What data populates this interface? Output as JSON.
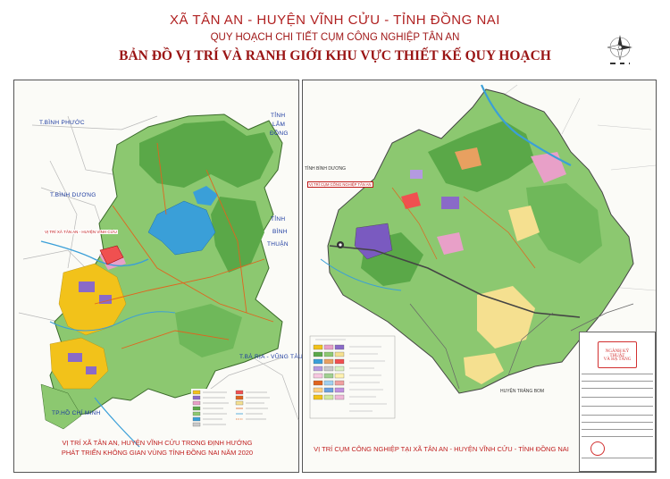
{
  "title": {
    "line1": "XÃ TÂN AN - HUYỆN VĨNH CỬU - TỈNH ĐỒNG NAI",
    "line2": "QUY HOẠCH CHI TIẾT CỤM CÔNG NGHIỆP TÂN AN",
    "line3": "BẢN ĐỒ VỊ TRÍ VÀ RANH GIỚI KHU VỰC THIẾT KẾ QUY HOẠCH"
  },
  "compass": {
    "icon": "north-arrow-compass-icon"
  },
  "left_map": {
    "labels": {
      "binh_phuoc": "T.BÌNH PHƯỚC",
      "binh_duong": "T.BÌNH DƯƠNG",
      "lam_dong_1": "TỈNH",
      "lam_dong_2": "LÂM",
      "lam_dong_3": "ĐỒNG",
      "binh_thuan_1": "TỈNH",
      "binh_thuan_2": "BÌNH",
      "binh_thuan_3": "THUẬN",
      "ba_ria": "T.BÀ RỊA - VŨNG TÀU",
      "hcm": "TP.HỒ CHÍ MINH",
      "site": "VỊ TRÍ XÃ TÂN AN - HUYỆN VĨNH CỬU"
    },
    "caption_line1": "VỊ TRÍ XÃ TÂN AN, HUYỆN VĨNH CỬU TRONG ĐỊNH HƯỚNG",
    "caption_line2": "PHÁT TRIỂN KHÔNG GIAN VÙNG TỈNH ĐỒNG NAI NĂM 2020"
  },
  "right_map": {
    "labels": {
      "binh_duong": "TỈNH BÌNH DƯƠNG",
      "site": "VỊ TRÍ CỤM CÔNG NGHIỆP TÂN AN",
      "trang_bom": "HUYỆN TRẢNG BOM"
    },
    "caption": "VỊ TRÍ CỤM CÔNG NGHIỆP TẠI XÃ TÂN AN - HUYỆN VĨNH CỬU - TỈNH ĐỒNG NAI"
  },
  "title_block": {
    "stamp_line1": "NGÀNH KỸ THUẬT",
    "stamp_line2": "VÀ HẠ TẦNG"
  },
  "colors": {
    "title_red": "#b02020",
    "forest_dark": "#4e9a3e",
    "forest_light": "#8cc870",
    "lake_blue": "#3a9fd8",
    "urban_yellow": "#f2c21a",
    "industrial_purple": "#8a6ac8",
    "residential_pink": "#e8a0c8"
  }
}
